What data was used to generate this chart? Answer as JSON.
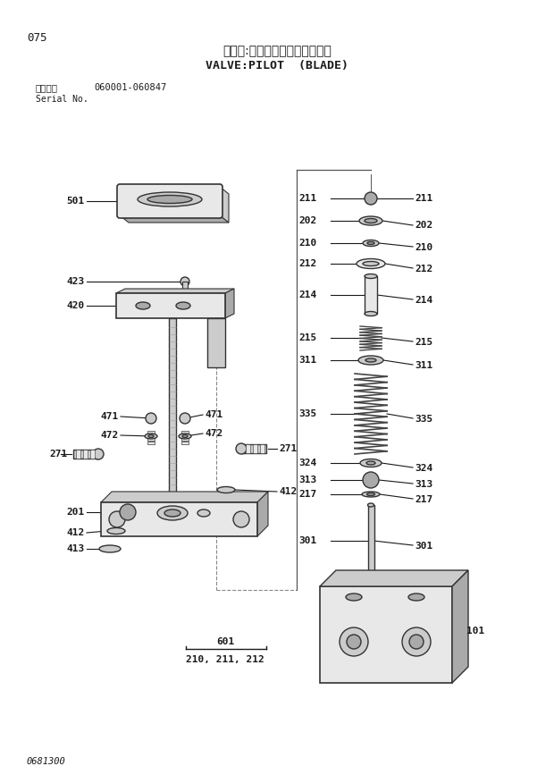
{
  "title_jp": "バルブ:パイロット（ブレード）",
  "title_en": "VALVE:PILOT  (BLADE)",
  "page_num": "075",
  "serial_label": "適用号機",
  "serial_no_label": "Serial No.",
  "serial_no": "060001-060847",
  "doc_num": "0681300",
  "bg_color": "#ffffff",
  "text_color": "#1a1a1a",
  "line_color": "#1a1a1a",
  "part_edge": "#333333",
  "part_fill_light": "#e8e8e8",
  "part_fill_mid": "#cccccc",
  "part_fill_dark": "#aaaaaa",
  "part_fill_vdark": "#888888"
}
